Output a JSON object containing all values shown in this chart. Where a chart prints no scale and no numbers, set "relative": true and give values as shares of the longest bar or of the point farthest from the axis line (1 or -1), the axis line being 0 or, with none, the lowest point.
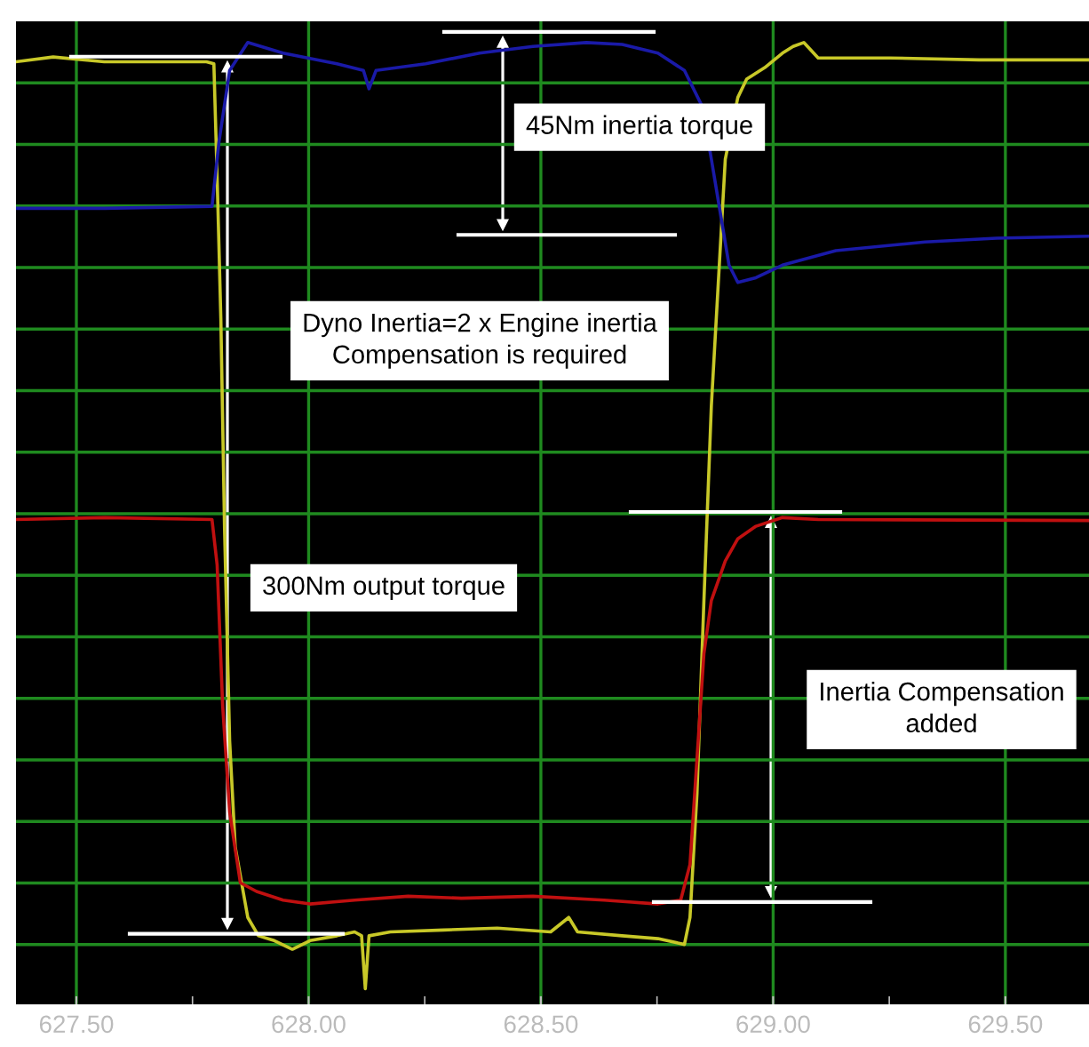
{
  "chart_data": {
    "type": "line",
    "relative": true,
    "xlim": [
      627.37,
      629.68
    ],
    "xticks": [
      {
        "value": 627.5,
        "label": "627.50"
      },
      {
        "value": 627.75,
        "label": null
      },
      {
        "value": 628.0,
        "label": "628.00"
      },
      {
        "value": 628.25,
        "label": null
      },
      {
        "value": 628.5,
        "label": "628.50"
      },
      {
        "value": 628.75,
        "label": null
      },
      {
        "value": 629.0,
        "label": "629.00"
      },
      {
        "value": 629.25,
        "label": null
      },
      {
        "value": 629.5,
        "label": "629.50"
      }
    ],
    "grid": true,
    "tick_labels": "x",
    "line_style": "solid",
    "annotations": [
      "45Nm inertia torque",
      "Dyno Inertia=2 x Engine inertia\nCompensation is required",
      "300Nm output torque",
      "Inertia Compensation\nadded"
    ],
    "series": [
      {
        "color": "#c8c828",
        "x": [
          627.37,
          627.45,
          627.56,
          627.68,
          627.78,
          627.796,
          627.803,
          627.811,
          627.819,
          627.83,
          627.842,
          627.869,
          627.892,
          627.926,
          627.965,
          628.003,
          628.061,
          628.099,
          628.114,
          628.122,
          628.13,
          628.176,
          628.291,
          628.406,
          628.521,
          628.56,
          628.579,
          628.675,
          628.752,
          628.809,
          628.821,
          628.836,
          628.851,
          628.867,
          628.897,
          628.924,
          628.943,
          628.982,
          629.02,
          629.043,
          629.066,
          629.097,
          629.251,
          629.443,
          629.68
        ],
        "values": [
          0.98,
          0.985,
          0.98,
          0.98,
          0.98,
          0.978,
          0.861,
          0.714,
          0.495,
          0.275,
          0.165,
          0.092,
          0.073,
          0.068,
          0.059,
          0.068,
          0.073,
          0.077,
          0.073,
          0.018,
          0.073,
          0.077,
          0.079,
          0.081,
          0.077,
          0.092,
          0.077,
          0.073,
          0.07,
          0.064,
          0.092,
          0.22,
          0.421,
          0.623,
          0.879,
          0.943,
          0.962,
          0.974,
          0.989,
          0.996,
          1.0,
          0.984,
          0.984,
          0.982,
          0.982
        ]
      },
      {
        "color": "#c01010",
        "x": [
          627.37,
          627.561,
          627.792,
          627.803,
          627.815,
          627.83,
          627.853,
          627.888,
          627.945,
          628.003,
          628.099,
          628.214,
          628.329,
          628.483,
          628.636,
          628.752,
          628.801,
          628.821,
          628.836,
          628.851,
          628.867,
          628.897,
          628.924,
          628.963,
          629.02,
          629.097,
          629.68
        ],
        "values": [
          0.505,
          0.507,
          0.505,
          0.458,
          0.311,
          0.201,
          0.128,
          0.119,
          0.11,
          0.106,
          0.11,
          0.114,
          0.112,
          0.114,
          0.11,
          0.106,
          0.11,
          0.147,
          0.256,
          0.366,
          0.421,
          0.462,
          0.485,
          0.498,
          0.507,
          0.505,
          0.504
        ]
      },
      {
        "color": "#1a1aa8",
        "x": [
          627.37,
          627.561,
          627.792,
          627.807,
          627.83,
          627.869,
          627.945,
          628.061,
          628.118,
          628.13,
          628.145,
          628.252,
          628.368,
          628.483,
          628.598,
          628.675,
          628.752,
          628.809,
          628.847,
          628.867,
          628.886,
          628.905,
          628.924,
          628.963,
          629.02,
          629.135,
          629.327,
          629.481,
          629.68
        ],
        "values": [
          0.828,
          0.828,
          0.83,
          0.897,
          0.971,
          1.0,
          0.989,
          0.978,
          0.971,
          0.952,
          0.971,
          0.978,
          0.989,
          0.996,
          1.0,
          0.998,
          0.989,
          0.971,
          0.934,
          0.879,
          0.824,
          0.769,
          0.751,
          0.756,
          0.769,
          0.784,
          0.793,
          0.797,
          0.799
        ]
      }
    ]
  }
}
